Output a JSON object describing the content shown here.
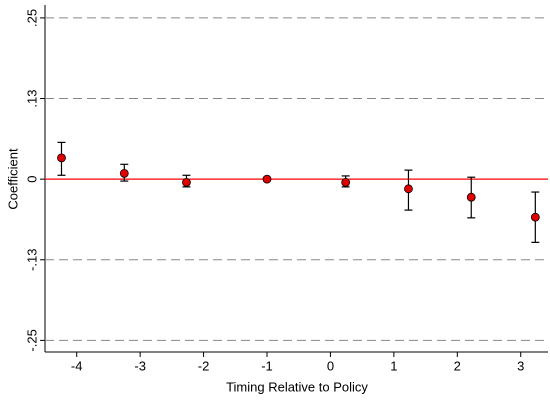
{
  "chart_data": {
    "type": "errorbar",
    "xlabel": "Timing Relative to Policy",
    "ylabel": "Coefficient",
    "x": [
      -4.24,
      -3.25,
      -2.27,
      -1,
      0.24,
      1.23,
      2.22,
      3.23
    ],
    "values": [
      0.033,
      0.009,
      -0.005,
      0,
      -0.005,
      -0.015,
      -0.028,
      -0.059
    ],
    "lower": [
      0.006,
      -0.003,
      -0.012,
      0,
      -0.012,
      -0.048,
      -0.06,
      -0.098
    ],
    "upper": [
      0.057,
      0.023,
      0.006,
      0,
      0.005,
      0.014,
      0.003,
      -0.02
    ],
    "color": "#e00000",
    "hline": 0,
    "hline_color": "#ff0000",
    "xlim": [
      -4.5,
      3.43
    ],
    "xticks": [
      -4,
      -3,
      -2,
      -1,
      0,
      1,
      2,
      3
    ],
    "ylim": [
      -0.268,
      0.27
    ],
    "yticks": [
      {
        "value": -0.25,
        "label": "-.25"
      },
      {
        "value": -0.125,
        "label": "-.13"
      },
      0,
      {
        "value": 0.125,
        "label": ".13"
      },
      {
        "value": 0.25,
        "label": ".25"
      }
    ],
    "grid": true
  }
}
